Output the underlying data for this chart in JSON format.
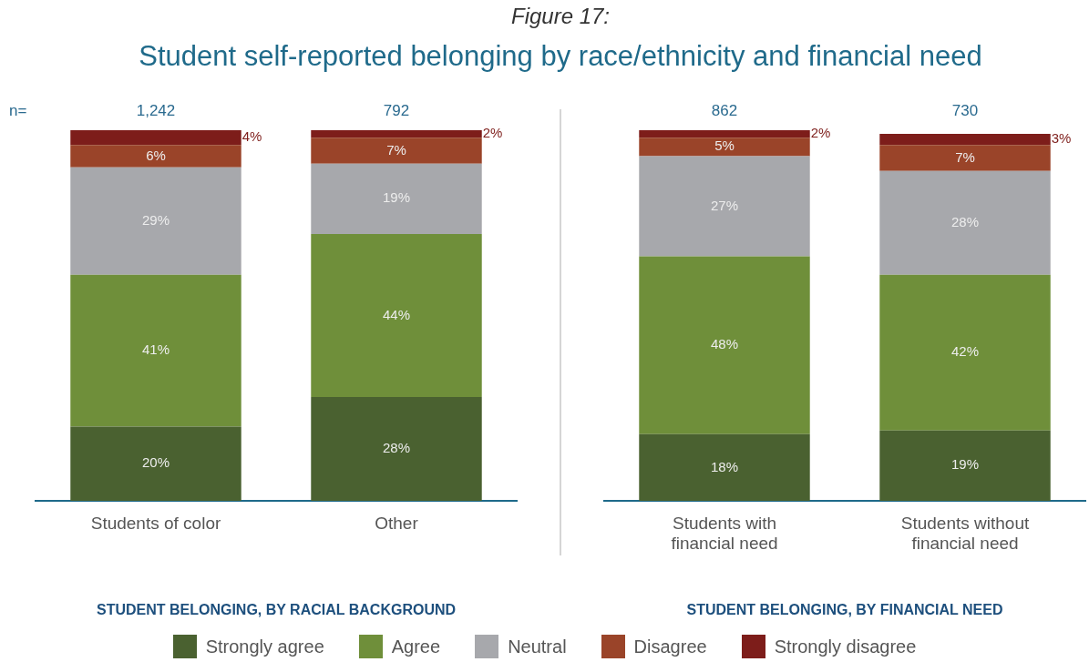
{
  "chart_data": [
    {
      "type": "bar",
      "title": "Figure 17:",
      "subtitle": "Student self-reported belonging by race/ethnicity and financial need",
      "xlabel": "STUDENT BELONGING, BY RACIAL BACKGROUND",
      "categories": [
        "Students of color",
        "Other"
      ],
      "stacked": true,
      "ylim": [
        0,
        100
      ],
      "tick_labels": "x",
      "legend": "bottom",
      "annotations": [
        "n=",
        "1,242",
        "792"
      ],
      "series": [
        {
          "name": "Strongly agree",
          "color": "#4a6130",
          "values": [
            20,
            28
          ],
          "value_labels": [
            "20%",
            "28%"
          ]
        },
        {
          "name": "Agree",
          "color": "#6f8f3a",
          "values": [
            41,
            44
          ],
          "value_labels": [
            "41%",
            "44%"
          ]
        },
        {
          "name": "Neutral",
          "color": "#a7a8ac",
          "values": [
            29,
            19
          ],
          "value_labels": [
            "29%",
            "19%"
          ]
        },
        {
          "name": "Disagree",
          "color": "#9a4429",
          "values": [
            6,
            7
          ],
          "value_labels": [
            "6%",
            "7%"
          ]
        },
        {
          "name": "Strongly disagree",
          "color": "#7d1d1a",
          "values": [
            4,
            2
          ],
          "value_labels": [
            "4%",
            "2%"
          ]
        }
      ]
    },
    {
      "type": "bar",
      "xlabel": "STUDENT BELONGING, BY FINANCIAL NEED",
      "categories": [
        "Students with financial need",
        "Students without financial need"
      ],
      "stacked": true,
      "ylim": [
        0,
        100
      ],
      "tick_labels": "x",
      "annotations": [
        "862",
        "730"
      ],
      "series": [
        {
          "color": "#4a6130",
          "values": [
            18,
            19
          ],
          "value_labels": [
            "18%",
            "19%"
          ]
        },
        {
          "color": "#6f8f3a",
          "values": [
            48,
            42
          ],
          "value_labels": [
            "48%",
            "42%"
          ]
        },
        {
          "color": "#a7a8ac",
          "values": [
            27,
            28
          ],
          "value_labels": [
            "27%",
            "28%"
          ]
        },
        {
          "color": "#9a4429",
          "values": [
            5,
            7
          ],
          "value_labels": [
            "5%",
            "7%"
          ]
        },
        {
          "color": "#7d1d1a",
          "values": [
            2,
            3
          ],
          "value_labels": [
            "2%",
            "3%"
          ]
        }
      ]
    }
  ]
}
